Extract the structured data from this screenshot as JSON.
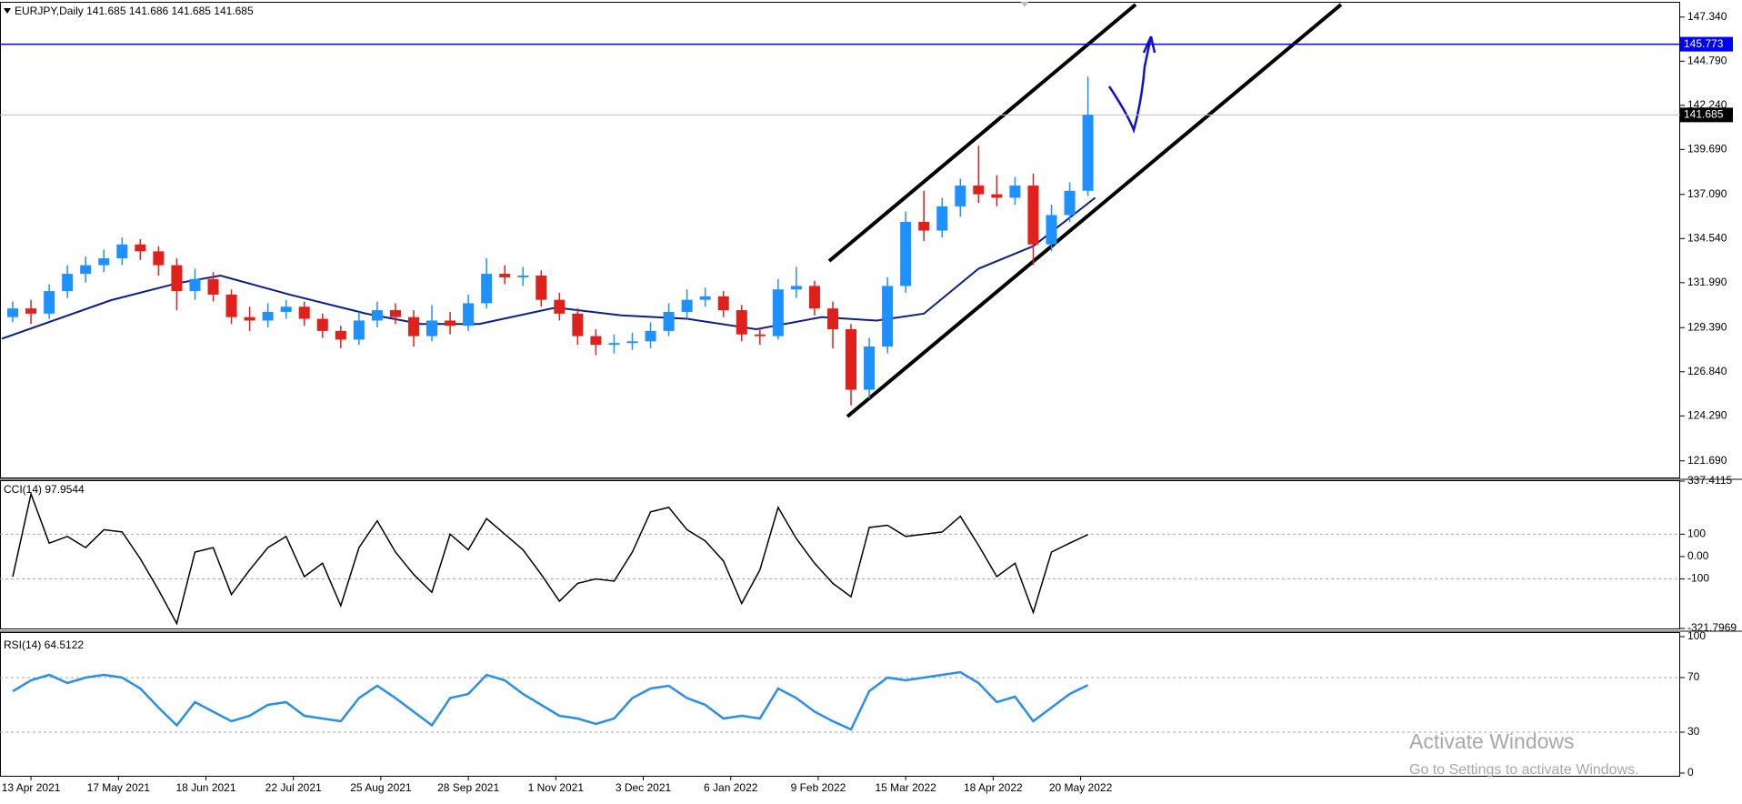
{
  "chart_data": [
    {
      "type": "candlestick",
      "title": "EURJPY,Daily  141.685 141.686 141.685 141.685",
      "x": [
        -5,
        0,
        5,
        10,
        15,
        20,
        25,
        30,
        35,
        40,
        45,
        50,
        55,
        60,
        65,
        70,
        75,
        80,
        85,
        90,
        95,
        100,
        105,
        110,
        115,
        120,
        125,
        130,
        135,
        140,
        145,
        150,
        155,
        160,
        165,
        170,
        175,
        180,
        185,
        190,
        195,
        200,
        205,
        210,
        215,
        220,
        225,
        230,
        235,
        240,
        245,
        250,
        255,
        260,
        265,
        270,
        275,
        280,
        285,
        290
      ],
      "ohlc": [
        [
          130.0,
          130.9,
          129.7,
          130.5
        ],
        [
          130.5,
          131.0,
          129.6,
          130.2
        ],
        [
          130.2,
          131.9,
          129.9,
          131.5
        ],
        [
          131.5,
          133.0,
          131.1,
          132.5
        ],
        [
          132.5,
          133.5,
          132.0,
          133.0
        ],
        [
          133.0,
          133.9,
          132.6,
          133.4
        ],
        [
          133.4,
          134.6,
          133.0,
          134.2
        ],
        [
          134.2,
          134.5,
          133.3,
          133.8
        ],
        [
          133.8,
          134.1,
          132.4,
          133.0
        ],
        [
          133.0,
          133.4,
          130.4,
          131.5
        ],
        [
          131.5,
          132.8,
          131.0,
          132.2
        ],
        [
          132.2,
          132.6,
          130.9,
          131.3
        ],
        [
          131.3,
          131.6,
          129.6,
          130.0
        ],
        [
          130.0,
          130.6,
          129.2,
          129.8
        ],
        [
          129.8,
          130.8,
          129.4,
          130.3
        ],
        [
          130.3,
          131.0,
          129.9,
          130.6
        ],
        [
          130.6,
          130.9,
          129.5,
          129.9
        ],
        [
          129.9,
          130.2,
          128.8,
          129.2
        ],
        [
          129.2,
          129.5,
          128.2,
          128.7
        ],
        [
          128.7,
          130.3,
          128.4,
          129.8
        ],
        [
          129.8,
          130.9,
          129.4,
          130.4
        ],
        [
          130.4,
          130.8,
          129.6,
          130.0
        ],
        [
          130.0,
          130.4,
          128.3,
          128.9
        ],
        [
          128.9,
          130.7,
          128.6,
          129.8
        ],
        [
          129.8,
          130.3,
          129.0,
          129.5
        ],
        [
          129.5,
          131.3,
          129.2,
          130.8
        ],
        [
          130.8,
          133.4,
          130.5,
          132.5
        ],
        [
          132.5,
          133.0,
          131.9,
          132.3
        ],
        [
          132.3,
          132.9,
          131.8,
          132.4
        ],
        [
          132.4,
          132.7,
          130.6,
          131.0
        ],
        [
          131.0,
          131.4,
          129.8,
          130.2
        ],
        [
          130.2,
          130.5,
          128.4,
          128.9
        ],
        [
          128.9,
          129.3,
          127.8,
          128.4
        ],
        [
          128.4,
          129.0,
          127.9,
          128.5
        ],
        [
          128.5,
          129.1,
          128.1,
          128.6
        ],
        [
          128.6,
          129.7,
          128.2,
          129.2
        ],
        [
          129.2,
          130.8,
          128.9,
          130.3
        ],
        [
          130.3,
          131.6,
          129.9,
          131.0
        ],
        [
          131.0,
          131.7,
          130.6,
          131.2
        ],
        [
          131.2,
          131.5,
          130.0,
          130.4
        ],
        [
          130.4,
          130.7,
          128.6,
          129.0
        ],
        [
          129.0,
          129.4,
          128.4,
          128.9
        ],
        [
          128.9,
          132.2,
          128.7,
          131.6
        ],
        [
          131.6,
          132.9,
          131.1,
          131.8
        ],
        [
          131.8,
          132.1,
          130.1,
          130.5
        ],
        [
          130.5,
          130.9,
          128.2,
          129.3
        ],
        [
          129.3,
          129.6,
          124.9,
          125.8
        ],
        [
          125.8,
          128.8,
          125.3,
          128.3
        ],
        [
          128.3,
          132.3,
          127.9,
          131.8
        ],
        [
          131.8,
          136.1,
          131.4,
          135.5
        ],
        [
          135.5,
          137.3,
          134.4,
          135.0
        ],
        [
          135.0,
          136.9,
          134.6,
          136.4
        ],
        [
          136.4,
          138.0,
          135.8,
          137.6
        ],
        [
          137.6,
          139.9,
          136.6,
          137.1
        ],
        [
          137.1,
          138.2,
          136.4,
          136.9
        ],
        [
          136.9,
          138.1,
          136.5,
          137.6
        ],
        [
          137.6,
          138.3,
          133.0,
          134.2
        ],
        [
          134.2,
          136.5,
          133.8,
          135.9
        ],
        [
          135.9,
          137.8,
          135.5,
          137.3
        ],
        [
          137.3,
          143.9,
          137.0,
          141.685
        ]
      ],
      "up_color": "#1e90ff",
      "down_color": "#e0201b",
      "ma": {
        "color": "#0a1f8f",
        "x": [
          -8,
          22,
          40,
          52,
          71,
          92,
          107,
          123,
          144,
          162,
          180,
          199,
          217,
          232,
          245,
          260,
          275,
          292
        ],
        "values": [
          128.75,
          130.98,
          131.95,
          132.4,
          131.3,
          130.2,
          129.6,
          129.6,
          130.55,
          130.1,
          129.9,
          129.3,
          130.0,
          129.8,
          130.2,
          132.8,
          134.1,
          136.9
        ]
      },
      "hlines": [
        {
          "value": 145.773,
          "label": "145.773",
          "color": "#0000ff"
        },
        {
          "value": 141.685,
          "label": "141.685",
          "color": "#c0c0c0"
        }
      ],
      "xlim": [
        -8.5,
        452.5
      ],
      "ylim": [
        120.73,
        148.17
      ],
      "yticks": [
        {
          "value": 147.34,
          "label": "147.340"
        },
        {
          "value": 144.79,
          "label": "144.790"
        },
        {
          "value": 142.24,
          "label": "142.240"
        },
        {
          "value": 139.69,
          "label": "139.690"
        },
        {
          "value": 137.09,
          "label": "137.090"
        },
        {
          "value": 134.54,
          "label": "134.540"
        },
        {
          "value": 131.99,
          "label": "131.990"
        },
        {
          "value": 129.39,
          "label": "129.390"
        },
        {
          "value": 126.84,
          "label": "126.840"
        },
        {
          "value": 124.29,
          "label": "124.290"
        },
        {
          "value": 121.69,
          "label": "121.690"
        }
      ]
    },
    {
      "type": "line",
      "title": "CCI(14) 97.9544",
      "color": "#000000",
      "x": [
        -5,
        0,
        5,
        10,
        15,
        20,
        25,
        30,
        35,
        40,
        45,
        50,
        55,
        60,
        65,
        70,
        75,
        80,
        85,
        90,
        95,
        100,
        105,
        110,
        115,
        120,
        125,
        130,
        135,
        140,
        145,
        150,
        155,
        160,
        165,
        170,
        175,
        180,
        185,
        190,
        195,
        200,
        205,
        210,
        215,
        220,
        225,
        230,
        235,
        240,
        245,
        250,
        255,
        260,
        265,
        270,
        275,
        280,
        285,
        290
      ],
      "values": [
        -90,
        280,
        60,
        90,
        40,
        120,
        110,
        -10,
        -150,
        -300,
        20,
        40,
        -170,
        -60,
        40,
        90,
        -90,
        -30,
        -220,
        40,
        160,
        20,
        -80,
        -160,
        100,
        30,
        170,
        100,
        30,
        -80,
        -200,
        -120,
        -100,
        -110,
        20,
        200,
        220,
        120,
        70,
        -20,
        -210,
        -60,
        220,
        80,
        -30,
        -120,
        -180,
        130,
        140,
        90,
        100,
        110,
        180,
        50,
        -90,
        -30,
        -250,
        20,
        60,
        97.9544
      ],
      "levels": [
        100,
        -100
      ],
      "xlim": [
        -8.5,
        452.5
      ],
      "ylim": [
        -321.7969,
        337.4115
      ],
      "yticks": [
        337.4115,
        100,
        {
          "value": 0,
          "label": "0.00"
        },
        -100,
        -321.7969
      ]
    },
    {
      "type": "line",
      "title": "RSI(14) 64.5122",
      "color": "#2a8fe8",
      "x": [
        -5,
        0,
        5,
        10,
        15,
        20,
        25,
        30,
        35,
        40,
        45,
        50,
        55,
        60,
        65,
        70,
        75,
        80,
        85,
        90,
        95,
        100,
        105,
        110,
        115,
        120,
        125,
        130,
        135,
        140,
        145,
        150,
        155,
        160,
        165,
        170,
        175,
        180,
        185,
        190,
        195,
        200,
        205,
        210,
        215,
        220,
        225,
        230,
        235,
        240,
        245,
        250,
        255,
        260,
        265,
        270,
        275,
        280,
        285,
        290
      ],
      "values": [
        60,
        68,
        72,
        66,
        70,
        72,
        70,
        62,
        48,
        35,
        52,
        45,
        38,
        42,
        50,
        52,
        42,
        40,
        38,
        55,
        64,
        55,
        45,
        35,
        55,
        58,
        72,
        68,
        58,
        50,
        42,
        40,
        36,
        40,
        55,
        62,
        64,
        55,
        50,
        40,
        42,
        40,
        62,
        55,
        45,
        38,
        32,
        60,
        70,
        68,
        70,
        72,
        74,
        66,
        52,
        56,
        38,
        48,
        58,
        64.5122
      ],
      "levels": [
        70,
        30
      ],
      "xlim": [
        -8.5,
        452.5
      ],
      "ylim": [
        0,
        100
      ],
      "yticks": [
        100,
        70,
        30,
        0
      ],
      "xticks": [
        {
          "value": 0,
          "label": "13 Apr 2021"
        },
        {
          "value": 24,
          "label": "17 May 2021"
        },
        {
          "value": 48,
          "label": "18 Jun 2021"
        },
        {
          "value": 72,
          "label": "22 Jul 2021"
        },
        {
          "value": 96,
          "label": "25 Aug 2021"
        },
        {
          "value": 120,
          "label": "28 Sep 2021"
        },
        {
          "value": 144,
          "label": "1 Nov 2021"
        },
        {
          "value": 168,
          "label": "3 Dec 2021"
        },
        {
          "value": 192,
          "label": "6 Jan 2022"
        },
        {
          "value": 216,
          "label": "9 Feb 2022"
        },
        {
          "value": 240,
          "label": "15 Mar 2022"
        },
        {
          "value": 264,
          "label": "18 Apr 2022"
        },
        {
          "value": 288,
          "label": "20 May 2022"
        }
      ]
    }
  ],
  "overlay": {
    "title": "Activate Windows",
    "subtitle": "Go to Settings to activate Windows."
  }
}
